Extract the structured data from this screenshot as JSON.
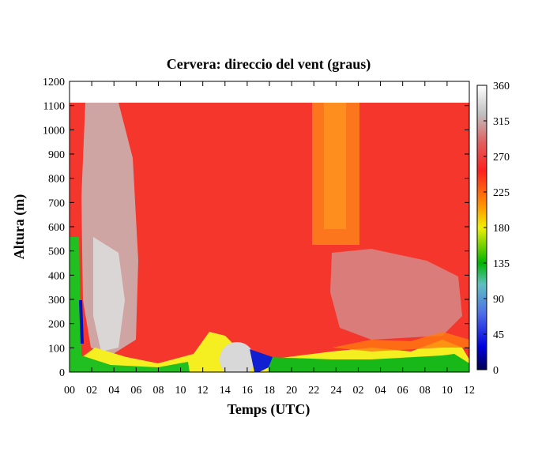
{
  "chart_data": {
    "type": "heatmap",
    "title": "Cervera: direccio del vent (graus)",
    "xlabel": "Temps (UTC)",
    "ylabel": "Altura (m)",
    "x_tick_labels": [
      "00",
      "02",
      "04",
      "06",
      "08",
      "10",
      "12",
      "14",
      "16",
      "18",
      "20",
      "22",
      "24",
      "02",
      "04",
      "06",
      "08",
      "10",
      "12"
    ],
    "x_range_hours": [
      0,
      36
    ],
    "y_ticks": [
      0,
      100,
      200,
      300,
      400,
      500,
      600,
      700,
      800,
      900,
      1000,
      1100,
      1200
    ],
    "ylim": [
      0,
      1200
    ],
    "data_top_m": 1110,
    "colorbar": {
      "ticks": [
        0,
        45,
        90,
        135,
        180,
        225,
        270,
        315,
        360
      ],
      "range": [
        0,
        360
      ],
      "palette": [
        "#000050",
        "#0000e0",
        "#5070e8",
        "#60c0c0",
        "#00b400",
        "#f0f000",
        "#ff9000",
        "#ff2020",
        "#e06060",
        "#c0c0c0",
        "#ffffff"
      ]
    },
    "summary": "Wind direction field: mostly 260-280 deg (red) above 150 m; grey ~315-340 deg plume near 03-06h; orange ~230 deg band near 23-25h above 500 m; green/yellow 120-190 deg near surface; blue ~30 deg pocket near 16-17h below 100 m."
  }
}
